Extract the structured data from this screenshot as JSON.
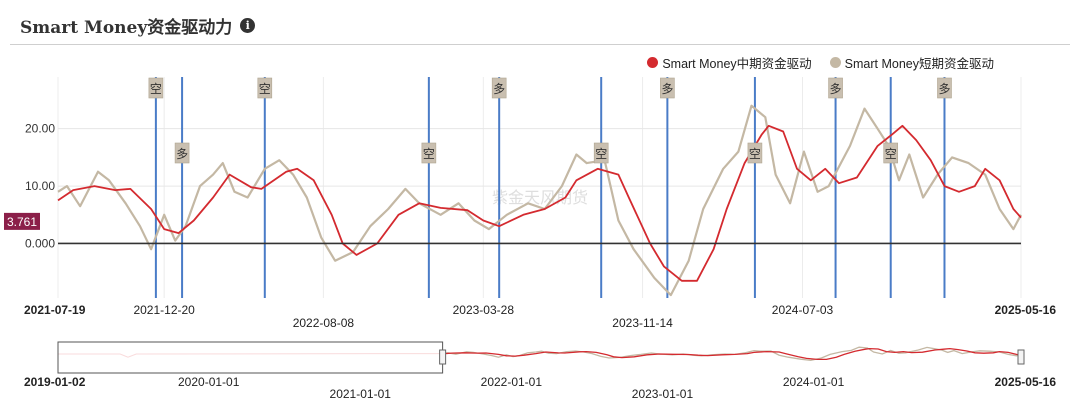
{
  "header": {
    "title": "Smart Money资金驱动力",
    "info_icon": "info-circle-icon"
  },
  "legend": [
    {
      "label": "Smart Money中期资金驱动",
      "color": "#d42a2f"
    },
    {
      "label": "Smart Money短期资金驱动",
      "color": "#c4b8a4"
    }
  ],
  "watermark": "紫金天风期货",
  "current_value": "3.761",
  "colors": {
    "mid": "#d42a2f",
    "short": "#c4b8a4",
    "signal_line": "#4a7cc7",
    "badge": "#8b1f49"
  },
  "chart_data": {
    "type": "line",
    "x_start": "2021-07-19",
    "x_end": "2025-05-16",
    "ylim": [
      -9.5,
      29
    ],
    "yticks": [
      "0.000",
      "10.00",
      "20.00"
    ],
    "ytick_values": [
      0,
      10,
      20
    ],
    "xtick_labels": [
      {
        "date": "2021-07-19",
        "label": "2021-07-19",
        "bold": true,
        "row": 0
      },
      {
        "date": "2021-12-20",
        "label": "2021-12-20",
        "bold": false,
        "row": 0
      },
      {
        "date": "2022-08-08",
        "label": "2022-08-08",
        "bold": false,
        "row": 1
      },
      {
        "date": "2023-03-28",
        "label": "2023-03-28",
        "bold": false,
        "row": 0
      },
      {
        "date": "2023-11-14",
        "label": "2023-11-14",
        "bold": false,
        "row": 1
      },
      {
        "date": "2024-07-03",
        "label": "2024-07-03",
        "bold": false,
        "row": 0
      },
      {
        "date": "2025-05-16",
        "label": "2025-05-16",
        "bold": true,
        "row": 0
      }
    ],
    "signals": [
      {
        "date": "2021-12-08",
        "label": "空",
        "pos": "top"
      },
      {
        "date": "2022-01-15",
        "label": "多",
        "pos": "mid"
      },
      {
        "date": "2022-05-15",
        "label": "空",
        "pos": "top"
      },
      {
        "date": "2023-01-08",
        "label": "空",
        "pos": "mid"
      },
      {
        "date": "2023-04-20",
        "label": "多",
        "pos": "top"
      },
      {
        "date": "2023-09-15",
        "label": "空",
        "pos": "mid"
      },
      {
        "date": "2023-12-20",
        "label": "多",
        "pos": "top"
      },
      {
        "date": "2024-04-25",
        "label": "空",
        "pos": "mid"
      },
      {
        "date": "2024-08-20",
        "label": "多",
        "pos": "top"
      },
      {
        "date": "2024-11-08",
        "label": "空",
        "pos": "mid"
      },
      {
        "date": "2025-01-25",
        "label": "多",
        "pos": "top"
      }
    ],
    "series": [
      {
        "name": "Smart Money中期资金驱动",
        "points": [
          [
            "2021-07-19",
            7.5
          ],
          [
            "2021-08-10",
            9.3
          ],
          [
            "2021-09-10",
            10
          ],
          [
            "2021-10-10",
            9.3
          ],
          [
            "2021-11-01",
            9.5
          ],
          [
            "2021-12-01",
            6
          ],
          [
            "2021-12-20",
            2.5
          ],
          [
            "2022-01-10",
            1.8
          ],
          [
            "2022-02-01",
            4
          ],
          [
            "2022-03-01",
            8
          ],
          [
            "2022-03-25",
            12
          ],
          [
            "2022-04-25",
            9.8
          ],
          [
            "2022-05-10",
            9.5
          ],
          [
            "2022-06-15",
            12.5
          ],
          [
            "2022-07-01",
            13
          ],
          [
            "2022-07-25",
            11
          ],
          [
            "2022-08-20",
            5
          ],
          [
            "2022-09-05",
            0
          ],
          [
            "2022-09-25",
            -2
          ],
          [
            "2022-10-25",
            0
          ],
          [
            "2022-11-25",
            5
          ],
          [
            "2022-12-25",
            7
          ],
          [
            "2023-01-25",
            6.2
          ],
          [
            "2023-03-05",
            5.8
          ],
          [
            "2023-03-28",
            4
          ],
          [
            "2023-04-20",
            3
          ],
          [
            "2023-05-25",
            5
          ],
          [
            "2023-06-25",
            6
          ],
          [
            "2023-07-25",
            8
          ],
          [
            "2023-08-10",
            11
          ],
          [
            "2023-09-10",
            13
          ],
          [
            "2023-10-10",
            12
          ],
          [
            "2023-10-25",
            8
          ],
          [
            "2023-11-25",
            0
          ],
          [
            "2023-12-15",
            -4
          ],
          [
            "2024-01-10",
            -6.5
          ],
          [
            "2024-02-01",
            -6.5
          ],
          [
            "2024-02-25",
            -1
          ],
          [
            "2024-03-15",
            6
          ],
          [
            "2024-04-10",
            14
          ],
          [
            "2024-05-05",
            19
          ],
          [
            "2024-05-15",
            20.5
          ],
          [
            "2024-06-05",
            19.5
          ],
          [
            "2024-06-25",
            13
          ],
          [
            "2024-07-15",
            11
          ],
          [
            "2024-08-05",
            13
          ],
          [
            "2024-08-25",
            10.5
          ],
          [
            "2024-09-20",
            11.5
          ],
          [
            "2024-10-20",
            17
          ],
          [
            "2024-11-10",
            19
          ],
          [
            "2024-11-25",
            20.5
          ],
          [
            "2024-12-15",
            18
          ],
          [
            "2025-01-05",
            14.5
          ],
          [
            "2025-01-25",
            10
          ],
          [
            "2025-02-15",
            9
          ],
          [
            "2025-03-10",
            10
          ],
          [
            "2025-03-25",
            13
          ],
          [
            "2025-04-15",
            11
          ],
          [
            "2025-05-05",
            6
          ],
          [
            "2025-05-16",
            4.5
          ]
        ]
      },
      {
        "name": "Smart Money短期资金驱动",
        "points": [
          [
            "2021-07-19",
            9
          ],
          [
            "2021-08-01",
            10
          ],
          [
            "2021-08-20",
            6.5
          ],
          [
            "2021-09-15",
            12.5
          ],
          [
            "2021-10-01",
            11
          ],
          [
            "2021-10-25",
            7
          ],
          [
            "2021-11-15",
            3
          ],
          [
            "2021-12-01",
            -1
          ],
          [
            "2021-12-20",
            5
          ],
          [
            "2022-01-05",
            0.5
          ],
          [
            "2022-01-20",
            3
          ],
          [
            "2022-02-10",
            10
          ],
          [
            "2022-03-01",
            12
          ],
          [
            "2022-03-15",
            14
          ],
          [
            "2022-04-01",
            9
          ],
          [
            "2022-04-20",
            8
          ],
          [
            "2022-05-15",
            13
          ],
          [
            "2022-06-05",
            14.5
          ],
          [
            "2022-06-25",
            12
          ],
          [
            "2022-07-15",
            8
          ],
          [
            "2022-08-05",
            1
          ],
          [
            "2022-08-25",
            -3
          ],
          [
            "2022-09-20",
            -1.5
          ],
          [
            "2022-10-15",
            3
          ],
          [
            "2022-11-10",
            6
          ],
          [
            "2022-12-05",
            9.5
          ],
          [
            "2022-12-25",
            7
          ],
          [
            "2023-01-25",
            5
          ],
          [
            "2023-02-20",
            7
          ],
          [
            "2023-03-15",
            4
          ],
          [
            "2023-04-05",
            2.5
          ],
          [
            "2023-05-01",
            5
          ],
          [
            "2023-06-01",
            7
          ],
          [
            "2023-06-25",
            6
          ],
          [
            "2023-07-20",
            10
          ],
          [
            "2023-08-10",
            15.5
          ],
          [
            "2023-08-25",
            14
          ],
          [
            "2023-09-20",
            14.5
          ],
          [
            "2023-10-10",
            4
          ],
          [
            "2023-11-01",
            -1
          ],
          [
            "2023-12-01",
            -6
          ],
          [
            "2023-12-25",
            -9
          ],
          [
            "2024-01-20",
            -3
          ],
          [
            "2024-02-10",
            6
          ],
          [
            "2024-03-10",
            13
          ],
          [
            "2024-04-01",
            16
          ],
          [
            "2024-04-20",
            24
          ],
          [
            "2024-05-10",
            22
          ],
          [
            "2024-05-25",
            12
          ],
          [
            "2024-06-15",
            7
          ],
          [
            "2024-07-05",
            16
          ],
          [
            "2024-07-25",
            9
          ],
          [
            "2024-08-10",
            10
          ],
          [
            "2024-09-10",
            17
          ],
          [
            "2024-10-01",
            23.5
          ],
          [
            "2024-10-20",
            20
          ],
          [
            "2024-11-05",
            17
          ],
          [
            "2024-11-20",
            11
          ],
          [
            "2024-12-05",
            15.5
          ],
          [
            "2024-12-25",
            8
          ],
          [
            "2025-01-15",
            12
          ],
          [
            "2025-02-05",
            15
          ],
          [
            "2025-03-01",
            14
          ],
          [
            "2025-03-25",
            12
          ],
          [
            "2025-04-15",
            6
          ],
          [
            "2025-05-05",
            2.5
          ],
          [
            "2025-05-16",
            5
          ]
        ]
      }
    ],
    "navigator": {
      "x_start": "2019-01-02",
      "x_end": "2025-05-16",
      "labels": [
        {
          "date": "2019-01-02",
          "label": "2019-01-02",
          "bold": true,
          "row": 0
        },
        {
          "date": "2020-01-01",
          "label": "2020-01-01",
          "bold": false,
          "row": 0
        },
        {
          "date": "2021-01-01",
          "label": "2021-01-01",
          "bold": false,
          "row": 1
        },
        {
          "date": "2022-01-01",
          "label": "2022-01-01",
          "bold": false,
          "row": 0
        },
        {
          "date": "2023-01-01",
          "label": "2023-01-01",
          "bold": false,
          "row": 1
        },
        {
          "date": "2024-01-01",
          "label": "2024-01-01",
          "bold": false,
          "row": 0
        },
        {
          "date": "2025-05-16",
          "label": "2025-05-16",
          "bold": true,
          "row": 0
        }
      ]
    }
  }
}
